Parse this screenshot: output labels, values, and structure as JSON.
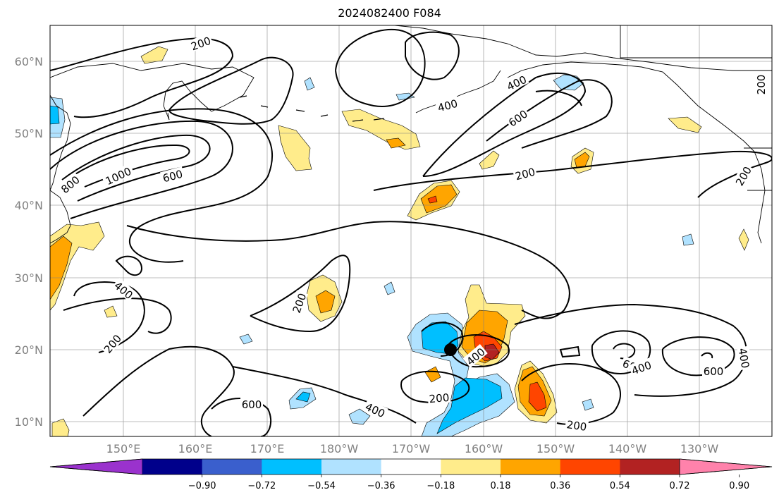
{
  "title": "2024082400 F084",
  "lon_labels": [
    "150°E",
    "160°E",
    "170°E",
    "180°W",
    "170°W",
    "160°W",
    "150°W",
    "140°W",
    "130°W"
  ],
  "lat_labels": [
    "60°N",
    "50°N",
    "40°N",
    "30°N",
    "20°N",
    "10°N"
  ],
  "colorbar": {
    "colors": [
      "#9a32cd",
      "#00008b",
      "#3a5fcd",
      "#00bfff",
      "#b0e2ff",
      "#ffffff",
      "#ffec8b",
      "#ffa500",
      "#ff4500",
      "#b22222",
      "#ff82ab"
    ],
    "labels": [
      "−0.90",
      "−0.72",
      "−0.54",
      "−0.36",
      "−0.18",
      "0.18",
      "0.36",
      "0.54",
      "0.72",
      "0.90"
    ]
  },
  "contour_labels": [
    {
      "text": "200",
      "id": "c1"
    },
    {
      "text": "800",
      "id": "c2"
    },
    {
      "text": "1000",
      "id": "c3"
    },
    {
      "text": "600",
      "id": "c4"
    },
    {
      "text": "400",
      "id": "c5"
    },
    {
      "text": "600",
      "id": "c6"
    },
    {
      "text": "400",
      "id": "c7"
    },
    {
      "text": "200",
      "id": "c8"
    },
    {
      "text": "200",
      "id": "c9"
    },
    {
      "text": "400",
      "id": "c10"
    },
    {
      "text": "200",
      "id": "c11"
    },
    {
      "text": "200",
      "id": "c12"
    },
    {
      "text": "200",
      "id": "c13"
    },
    {
      "text": "400",
      "id": "c14"
    },
    {
      "text": "600",
      "id": "c15"
    },
    {
      "text": "400",
      "id": "c16"
    },
    {
      "text": "200",
      "id": "c17"
    },
    {
      "text": "200",
      "id": "c18"
    },
    {
      "text": "600",
      "id": "c19"
    },
    {
      "text": "400",
      "id": "c20"
    },
    {
      "text": "600",
      "id": "c21"
    },
    {
      "text": "400",
      "id": "c22"
    },
    {
      "text": "200",
      "id": "c23"
    }
  ]
}
